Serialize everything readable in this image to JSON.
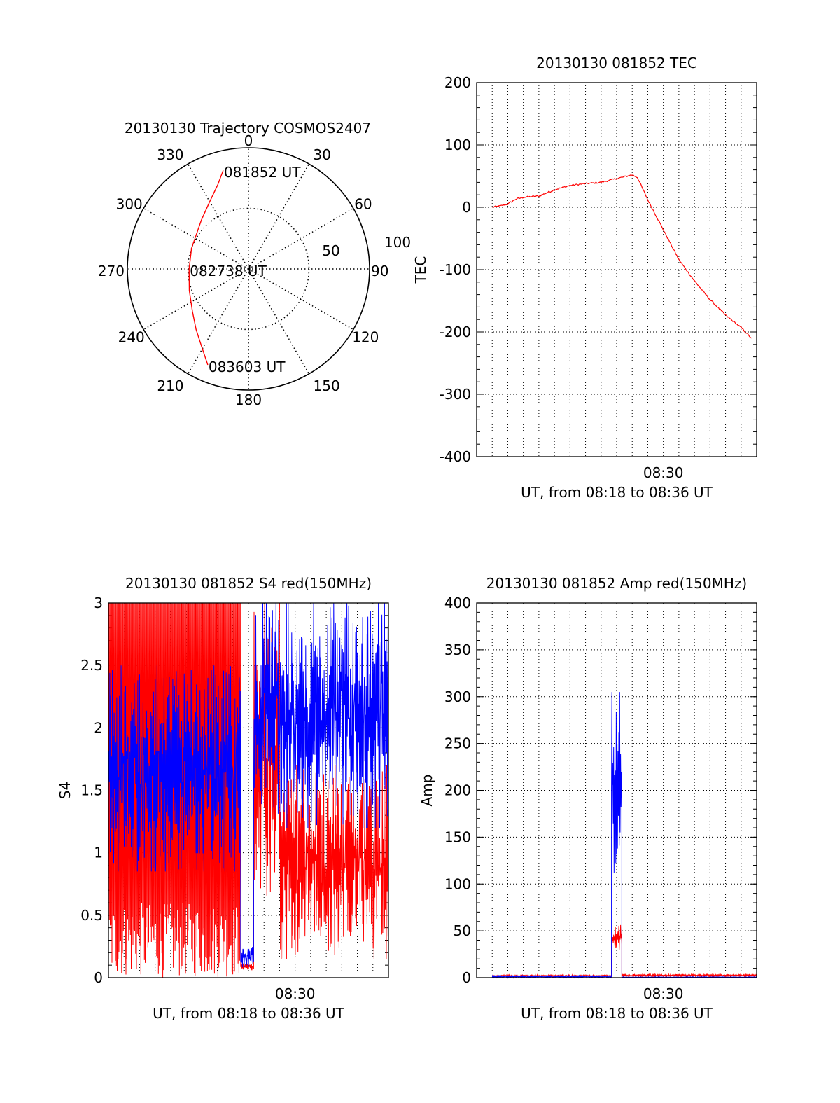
{
  "colors": {
    "red": "#ff0000",
    "blue": "#0000ff",
    "axis": "#000000",
    "grid": "#000000",
    "background": "#ffffff"
  },
  "chart_data": [
    {
      "id": "trajectory",
      "type": "polar",
      "title": "20130130 Trajectory COSMOS2407",
      "angle_labels": [
        {
          "deg": 0,
          "text": "0"
        },
        {
          "deg": 30,
          "text": "30"
        },
        {
          "deg": 60,
          "text": "60"
        },
        {
          "deg": 90,
          "text": "90"
        },
        {
          "deg": 120,
          "text": "120"
        },
        {
          "deg": 150,
          "text": "150"
        },
        {
          "deg": 180,
          "text": "180"
        },
        {
          "deg": 210,
          "text": "210"
        },
        {
          "deg": 240,
          "text": "240"
        },
        {
          "deg": 270,
          "text": "270"
        },
        {
          "deg": 300,
          "text": "300"
        },
        {
          "deg": 330,
          "text": "330"
        }
      ],
      "radial_ticks": [
        {
          "r": 50,
          "text": "50"
        },
        {
          "r": 100,
          "text": "100"
        }
      ],
      "rlim": [
        0,
        100
      ],
      "track": {
        "color": "red",
        "points": [
          [
            345.6,
            84
          ],
          [
            340,
            74
          ],
          [
            330,
            64
          ],
          [
            316,
            56
          ],
          [
            290,
            50
          ],
          [
            270,
            49
          ],
          [
            250,
            52
          ],
          [
            233,
            58
          ],
          [
            221,
            66
          ],
          [
            211,
            75
          ],
          [
            203,
            86
          ]
        ]
      },
      "annotations": [
        {
          "text": "081852 UT",
          "az": 345.6,
          "r": 84
        },
        {
          "text": "082738 UT",
          "az": 270,
          "r": 49
        },
        {
          "text": "083603 UT",
          "az": 203,
          "r": 86
        }
      ]
    },
    {
      "id": "tec",
      "type": "line",
      "title": "20130130 081852 TEC",
      "ylabel": "TEC",
      "xlabel": "UT, from 08:18 to 08:36 UT",
      "xlim": [
        "08:18",
        "08:36"
      ],
      "ylim": [
        -400,
        200
      ],
      "yticks": [
        200,
        100,
        0,
        -100,
        -200,
        -300,
        -400
      ],
      "xtick_labels": [
        {
          "x": "08:30",
          "text": "08:30"
        }
      ],
      "grid": true,
      "series": [
        {
          "color": "red",
          "points": [
            [
              "08:19",
              0
            ],
            [
              "08:19:30",
              2
            ],
            [
              "08:20",
              5
            ],
            [
              "08:20:30",
              13
            ],
            [
              "08:21",
              16
            ],
            [
              "08:22",
              18
            ],
            [
              "08:22:30",
              23
            ],
            [
              "08:23",
              28
            ],
            [
              "08:24",
              35
            ],
            [
              "08:25",
              38
            ],
            [
              "08:26",
              40
            ],
            [
              "08:27",
              46
            ],
            [
              "08:28",
              52
            ],
            [
              "08:28:20",
              48
            ],
            [
              "08:29",
              12
            ],
            [
              "08:30",
              -36
            ],
            [
              "08:31",
              -84
            ],
            [
              "08:32",
              -118
            ],
            [
              "08:33",
              -148
            ],
            [
              "08:34",
              -173
            ],
            [
              "08:35",
              -193
            ],
            [
              "08:35:40",
              -210
            ]
          ]
        }
      ]
    },
    {
      "id": "s4",
      "type": "line",
      "title": "20130130 081852 S4 red(150MHz)",
      "ylabel": "S4",
      "xlabel": "UT, from 08:18 to 08:36 UT",
      "xlim": [
        "08:18",
        "08:36"
      ],
      "ylim": [
        0,
        3
      ],
      "yticks": [
        0,
        0.5,
        1,
        1.5,
        2,
        2.5,
        3
      ],
      "xtick_labels": [
        {
          "x": "08:30",
          "text": "08:30"
        }
      ],
      "grid": true,
      "series": [
        {
          "color": "red",
          "segments": [
            {
              "from": "08:18",
              "to": "08:26:30",
              "min": 0,
              "max": 3
            },
            {
              "from": "08:26:30",
              "to": "08:27:20",
              "min": 0.06,
              "max": 0.12
            },
            {
              "from": "08:27:20",
              "to": "08:29",
              "min": 0.5,
              "max": 3
            },
            {
              "from": "08:29",
              "to": "08:36",
              "min": 0.15,
              "max": 1.7
            }
          ]
        },
        {
          "color": "blue",
          "segments": [
            {
              "from": "08:18",
              "to": "08:26:30",
              "min": 0.85,
              "max": 2.5
            },
            {
              "from": "08:26:30",
              "to": "08:27:20",
              "min": 0.08,
              "max": 0.25
            },
            {
              "from": "08:27:20",
              "to": "08:36",
              "min": 1.2,
              "max": 3
            }
          ]
        }
      ]
    },
    {
      "id": "amp",
      "type": "line",
      "title": "20130130 081852 Amp red(150MHz)",
      "ylabel": "Amp",
      "xlabel": "UT, from 08:18 to 08:36 UT",
      "xlim": [
        "08:18",
        "08:36"
      ],
      "ylim": [
        0,
        400
      ],
      "yticks": [
        400,
        350,
        300,
        250,
        200,
        150,
        100,
        50,
        0
      ],
      "xtick_labels": [
        {
          "x": "08:30",
          "text": "08:30"
        }
      ],
      "grid": true,
      "series": [
        {
          "color": "red",
          "segments": [
            {
              "from": "08:19",
              "to": "08:26:40",
              "min": 1,
              "max": 3
            },
            {
              "from": "08:26:40",
              "to": "08:27:20",
              "min": 30,
              "max": 60
            },
            {
              "from": "08:27:20",
              "to": "08:36",
              "min": 1,
              "max": 4
            }
          ]
        },
        {
          "color": "blue",
          "segments": [
            {
              "from": "08:19",
              "to": "08:26:40",
              "min": 0,
              "max": 2
            },
            {
              "from": "08:26:40",
              "to": "08:27:20",
              "min": 100,
              "max": 305
            },
            {
              "from": "08:27:20",
              "to": "08:36",
              "min": 0,
              "max": 1
            }
          ]
        }
      ]
    }
  ]
}
